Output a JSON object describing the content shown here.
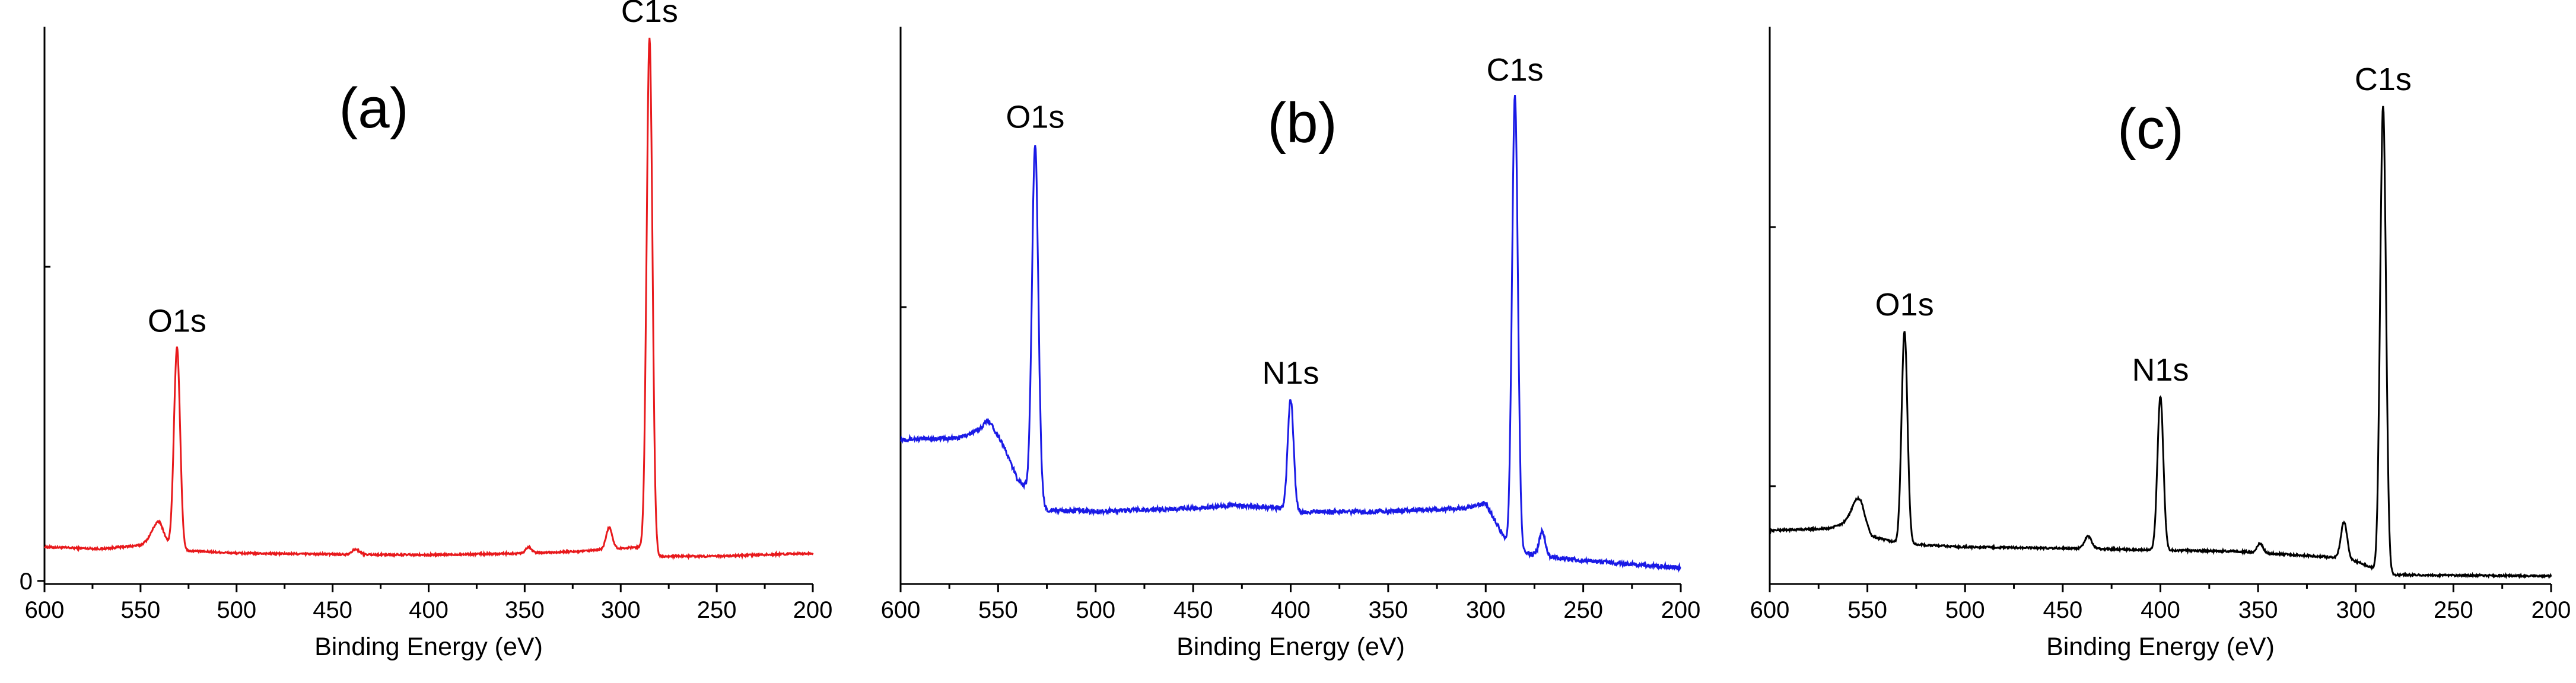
{
  "chart_data": [
    {
      "type": "line",
      "panel_label": "(a)",
      "color": "#e8191c",
      "xlabel": "Binding Energy (eV)",
      "ylabel": "",
      "xlim": [
        600,
        200
      ],
      "ylim": [
        -5,
        900
      ],
      "x_ticks": [
        "600",
        "550",
        "500",
        "450",
        "400",
        "350",
        "300",
        "250",
        "200"
      ],
      "y_tick_labels": [
        "0"
      ],
      "baseline": [
        [
          600,
          55
        ],
        [
          570,
          52
        ],
        [
          550,
          58
        ],
        [
          540,
          72
        ],
        [
          535,
          55
        ],
        [
          532,
          50
        ],
        [
          500,
          45
        ],
        [
          440,
          43
        ],
        [
          400,
          42
        ],
        [
          350,
          45
        ],
        [
          320,
          48
        ],
        [
          305,
          52
        ],
        [
          290,
          55
        ],
        [
          280,
          40
        ],
        [
          250,
          40
        ],
        [
          200,
          45
        ]
      ],
      "peaks": [
        {
          "label": "O1s",
          "x": 531,
          "y": 330,
          "width": 1.6
        },
        {
          "label": "",
          "x": 541,
          "y": 25,
          "width": 3.0
        },
        {
          "label": "",
          "x": 438,
          "y": 8,
          "width": 2.0
        },
        {
          "label": "",
          "x": 348,
          "y": 10,
          "width": 1.5
        },
        {
          "label": "",
          "x": 306,
          "y": 35,
          "width": 1.6
        },
        {
          "label": "C1s",
          "x": 285,
          "y": 835,
          "width": 1.5
        }
      ]
    },
    {
      "type": "line",
      "panel_label": "(b)",
      "color": "#1a1ae6",
      "xlabel": "Binding Energy (eV)",
      "ylabel": "",
      "xlim": [
        600,
        200
      ],
      "ylim": [
        -5,
        900
      ],
      "x_ticks": [
        "600",
        "550",
        "500",
        "450",
        "400",
        "350",
        "300",
        "250",
        "200"
      ],
      "y_tick_labels": [],
      "baseline": [
        [
          600,
          230
        ],
        [
          570,
          232
        ],
        [
          560,
          245
        ],
        [
          555,
          262
        ],
        [
          548,
          225
        ],
        [
          540,
          165
        ],
        [
          535,
          150
        ],
        [
          532,
          145
        ],
        [
          525,
          115
        ],
        [
          500,
          113
        ],
        [
          450,
          118
        ],
        [
          430,
          123
        ],
        [
          405,
          118
        ],
        [
          395,
          112
        ],
        [
          350,
          113
        ],
        [
          310,
          118
        ],
        [
          300,
          126
        ],
        [
          292,
          80
        ],
        [
          289,
          58
        ],
        [
          280,
          45
        ],
        [
          260,
          36
        ],
        [
          230,
          28
        ],
        [
          200,
          22
        ]
      ],
      "peaks": [
        {
          "label": "O1s",
          "x": 531,
          "y": 570,
          "width": 1.6
        },
        {
          "label": "N1s",
          "x": 400,
          "y": 180,
          "width": 1.5
        },
        {
          "label": "C1s",
          "x": 285,
          "y": 735,
          "width": 1.5
        },
        {
          "label": "",
          "x": 271,
          "y": 40,
          "width": 1.5
        }
      ]
    },
    {
      "type": "line",
      "panel_label": "(c)",
      "color": "#000000",
      "xlabel": "Binding Energy (eV)",
      "ylabel": "",
      "xlim": [
        600,
        200
      ],
      "ylim": [
        -5,
        900
      ],
      "x_ticks": [
        "600",
        "550",
        "500",
        "450",
        "400",
        "350",
        "300",
        "250",
        "200"
      ],
      "y_tick_labels": [],
      "baseline": [
        [
          600,
          82
        ],
        [
          570,
          85
        ],
        [
          560,
          95
        ],
        [
          553,
          100
        ],
        [
          548,
          72
        ],
        [
          535,
          62
        ],
        [
          520,
          58
        ],
        [
          500,
          55
        ],
        [
          450,
          53
        ],
        [
          400,
          50
        ],
        [
          360,
          48
        ],
        [
          330,
          42
        ],
        [
          310,
          38
        ],
        [
          300,
          32
        ],
        [
          292,
          22
        ],
        [
          285,
          10
        ],
        [
          250,
          9
        ],
        [
          200,
          8
        ]
      ],
      "peaks": [
        {
          "label": "O1s",
          "x": 531,
          "y": 345,
          "width": 1.5
        },
        {
          "label": "",
          "x": 555,
          "y": 35,
          "width": 3.0
        },
        {
          "label": "",
          "x": 437,
          "y": 20,
          "width": 1.8
        },
        {
          "label": "N1s",
          "x": 400,
          "y": 250,
          "width": 1.5
        },
        {
          "label": "",
          "x": 349,
          "y": 15,
          "width": 1.5
        },
        {
          "label": "",
          "x": 306,
          "y": 60,
          "width": 1.6
        },
        {
          "label": "C1s",
          "x": 286,
          "y": 760,
          "width": 1.5
        }
      ]
    }
  ]
}
